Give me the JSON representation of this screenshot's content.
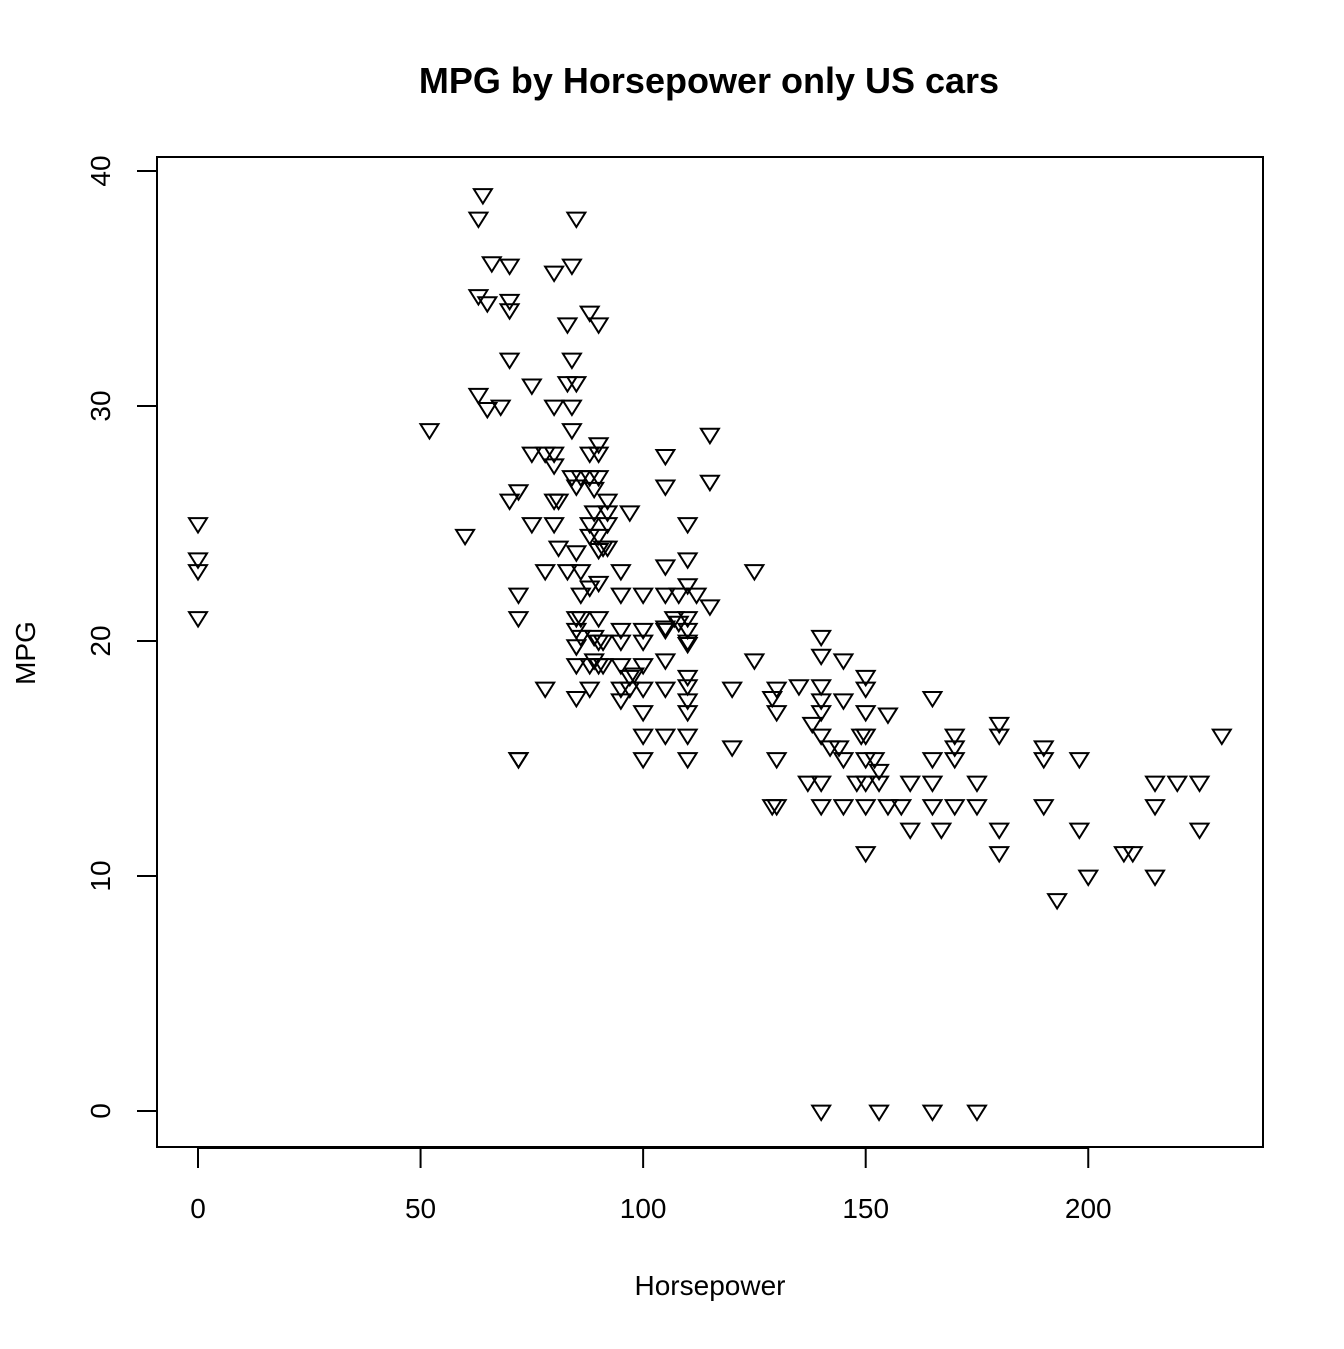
{
  "chart_data": {
    "type": "scatter",
    "title": "MPG by Horsepower only US cars",
    "xlabel": "Horsepower",
    "ylabel": "MPG",
    "xlim": [
      0,
      230
    ],
    "ylim": [
      0,
      40
    ],
    "xticks": [
      0,
      50,
      100,
      150,
      200
    ],
    "yticks": [
      0,
      10,
      20,
      30,
      40
    ],
    "marker": "down-triangle",
    "grid": false,
    "series": [
      {
        "points": [
          [
            0,
            25
          ],
          [
            0,
            23.5
          ],
          [
            0,
            23
          ],
          [
            0,
            21
          ],
          [
            52,
            29
          ],
          [
            60,
            24.5
          ],
          [
            63,
            38
          ],
          [
            64,
            39
          ],
          [
            63,
            34.7
          ],
          [
            65,
            34.4
          ],
          [
            66,
            36.1
          ],
          [
            70,
            36
          ],
          [
            70,
            34.5
          ],
          [
            70,
            34.1
          ],
          [
            70,
            32
          ],
          [
            63,
            30.5
          ],
          [
            65,
            29.9
          ],
          [
            68,
            30
          ],
          [
            75,
            30.9
          ],
          [
            70,
            26
          ],
          [
            72,
            26.4
          ],
          [
            72,
            22
          ],
          [
            72,
            21
          ],
          [
            72,
            15
          ],
          [
            72,
            15
          ],
          [
            75,
            28
          ],
          [
            78,
            28
          ],
          [
            80,
            28
          ],
          [
            80,
            27.5
          ],
          [
            80,
            26
          ],
          [
            81,
            26
          ],
          [
            75,
            25
          ],
          [
            80,
            25
          ],
          [
            81,
            24
          ],
          [
            78,
            23
          ],
          [
            83,
            23
          ],
          [
            78,
            18
          ],
          [
            80,
            35.7
          ],
          [
            84,
            36
          ],
          [
            85,
            38
          ],
          [
            83,
            33.5
          ],
          [
            84,
            32
          ],
          [
            83,
            31
          ],
          [
            85,
            31
          ],
          [
            80,
            30
          ],
          [
            84,
            30
          ],
          [
            84,
            29
          ],
          [
            84,
            27
          ],
          [
            85,
            26.6
          ],
          [
            86,
            27
          ],
          [
            85,
            23.8
          ],
          [
            86,
            23
          ],
          [
            86,
            22
          ],
          [
            85,
            21
          ],
          [
            86,
            21
          ],
          [
            85,
            20.5
          ],
          [
            86,
            20.2
          ],
          [
            85,
            19.8
          ],
          [
            85,
            19
          ],
          [
            88,
            19
          ],
          [
            85,
            17.6
          ],
          [
            88,
            18
          ],
          [
            88,
            34
          ],
          [
            90,
            33.5
          ],
          [
            88,
            28
          ],
          [
            90,
            28.4
          ],
          [
            90,
            28
          ],
          [
            88,
            27
          ],
          [
            90,
            27
          ],
          [
            89,
            26.5
          ],
          [
            88,
            25
          ],
          [
            89,
            25.5
          ],
          [
            90,
            24.5
          ],
          [
            88,
            24.5
          ],
          [
            91,
            24
          ],
          [
            90,
            23.9
          ],
          [
            90,
            22.5
          ],
          [
            88,
            22.3
          ],
          [
            90,
            21
          ],
          [
            89,
            20.2
          ],
          [
            90,
            20
          ],
          [
            91,
            20
          ],
          [
            89,
            19.2
          ],
          [
            90,
            19
          ],
          [
            91,
            19
          ],
          [
            92,
            26
          ],
          [
            92,
            25.5
          ],
          [
            92,
            25
          ],
          [
            97,
            25.5
          ],
          [
            92,
            24
          ],
          [
            95,
            23
          ],
          [
            95,
            22
          ],
          [
            95,
            20.5
          ],
          [
            95,
            20
          ],
          [
            95,
            19
          ],
          [
            95,
            18
          ],
          [
            95,
            17.5
          ],
          [
            97,
            18
          ],
          [
            97,
            18.5
          ],
          [
            98,
            18.6
          ],
          [
            100,
            22
          ],
          [
            100,
            20.5
          ],
          [
            100,
            20
          ],
          [
            100,
            19
          ],
          [
            100,
            18
          ],
          [
            100,
            17
          ],
          [
            100,
            16
          ],
          [
            100,
            15
          ],
          [
            105,
            27.9
          ],
          [
            105,
            26.6
          ],
          [
            105,
            23.2
          ],
          [
            105,
            22
          ],
          [
            105,
            20.6
          ],
          [
            105,
            20.5
          ],
          [
            105,
            19.2
          ],
          [
            105,
            18
          ],
          [
            105,
            16
          ],
          [
            107,
            21
          ],
          [
            108,
            20.8
          ],
          [
            108,
            22
          ],
          [
            110,
            25
          ],
          [
            110,
            23.5
          ],
          [
            110,
            22.4
          ],
          [
            110,
            21
          ],
          [
            110,
            20.5
          ],
          [
            110,
            20
          ],
          [
            110,
            19.9
          ],
          [
            110,
            18.5
          ],
          [
            110,
            18.1
          ],
          [
            110,
            17.5
          ],
          [
            110,
            17
          ],
          [
            110,
            16
          ],
          [
            110,
            15
          ],
          [
            112,
            22
          ],
          [
            115,
            28.8
          ],
          [
            115,
            26.8
          ],
          [
            115,
            21.5
          ],
          [
            120,
            18
          ],
          [
            120,
            15.5
          ],
          [
            125,
            23
          ],
          [
            125,
            19.2
          ],
          [
            129,
            17.6
          ],
          [
            130,
            17
          ],
          [
            130,
            18
          ],
          [
            130,
            15
          ],
          [
            129,
            13
          ],
          [
            130,
            13
          ],
          [
            135,
            18.1
          ],
          [
            137,
            14
          ],
          [
            138,
            16.5
          ],
          [
            140,
            20.2
          ],
          [
            140,
            19.4
          ],
          [
            140,
            18.1
          ],
          [
            140,
            17.5
          ],
          [
            140,
            17
          ],
          [
            140,
            16
          ],
          [
            140,
            14
          ],
          [
            140,
            13
          ],
          [
            142,
            15.5
          ],
          [
            144,
            15.5
          ],
          [
            145,
            19.2
          ],
          [
            145,
            17.5
          ],
          [
            145,
            15
          ],
          [
            145,
            13
          ],
          [
            148,
            14
          ],
          [
            149,
            16
          ],
          [
            150,
            16
          ],
          [
            150,
            18.5
          ],
          [
            150,
            18
          ],
          [
            150,
            17
          ],
          [
            150,
            15
          ],
          [
            150,
            14
          ],
          [
            150,
            13
          ],
          [
            150,
            11
          ],
          [
            152,
            15
          ],
          [
            153,
            14.5
          ],
          [
            153,
            14
          ],
          [
            155,
            16.9
          ],
          [
            155,
            13
          ],
          [
            158,
            13
          ],
          [
            160,
            14
          ],
          [
            160,
            12
          ],
          [
            165,
            17.6
          ],
          [
            165,
            15
          ],
          [
            165,
            14
          ],
          [
            165,
            13
          ],
          [
            167,
            12
          ],
          [
            170,
            16
          ],
          [
            170,
            15.5
          ],
          [
            170,
            15
          ],
          [
            170,
            13
          ],
          [
            175,
            14
          ],
          [
            175,
            13
          ],
          [
            180,
            16.5
          ],
          [
            180,
            16
          ],
          [
            180,
            12
          ],
          [
            180,
            11
          ],
          [
            190,
            15.5
          ],
          [
            190,
            15
          ],
          [
            190,
            13
          ],
          [
            193,
            9
          ],
          [
            198,
            15
          ],
          [
            198,
            12
          ],
          [
            200,
            10
          ],
          [
            208,
            11
          ],
          [
            210,
            11
          ],
          [
            215,
            14
          ],
          [
            215,
            13
          ],
          [
            215,
            10
          ],
          [
            220,
            14
          ],
          [
            225,
            14
          ],
          [
            225,
            12
          ],
          [
            230,
            16
          ],
          [
            140,
            0
          ],
          [
            153,
            0
          ],
          [
            165,
            0
          ],
          [
            175,
            0
          ]
        ]
      }
    ]
  }
}
